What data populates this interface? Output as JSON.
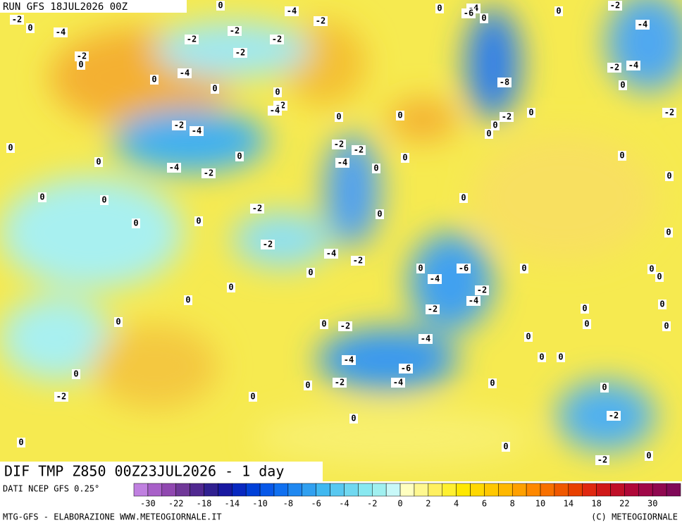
{
  "header": {
    "run": "RUN GFS 18JUL2026 00Z",
    "field": "DIF TMP Z850 00Z23JUL2026 - 1 day"
  },
  "footer": {
    "source": "DATI NCEP GFS 0.25°",
    "credit": "MTG-GFS - ELABORAZIONE WWW.METEOGIORNALE.IT",
    "copyright": "(C) METEOGIORNALE"
  },
  "colorbar": {
    "labels": [
      -30,
      -22,
      -18,
      -14,
      -10,
      -8,
      -6,
      -4,
      -2,
      0,
      2,
      4,
      6,
      8,
      10,
      14,
      18,
      22,
      30
    ],
    "colors": [
      "#c080e0",
      "#a860c8",
      "#9048b0",
      "#703898",
      "#502890",
      "#302090",
      "#1818a0",
      "#0828c0",
      "#0040d8",
      "#0858e8",
      "#1070f0",
      "#2088f0",
      "#30a0f0",
      "#40b8f0",
      "#58c8f0",
      "#70d8f0",
      "#88e8f0",
      "#a0f0f0",
      "#c8f8f8",
      "#ffffc0",
      "#fff890",
      "#fff060",
      "#fff030",
      "#ffe800",
      "#ffd800",
      "#ffc800",
      "#ffb800",
      "#ffa000",
      "#ff8800",
      "#f87000",
      "#f05800",
      "#e84000",
      "#e02810",
      "#d01818",
      "#c01028",
      "#b00838",
      "#a00848",
      "#900850",
      "#800858"
    ]
  },
  "map_labels": [
    -2,
    0,
    -4,
    -2,
    0,
    0,
    -2,
    -4,
    0,
    -2,
    -2,
    -2,
    -4,
    -2,
    0,
    -2,
    -4,
    -2,
    -4,
    0,
    0,
    -4,
    -2,
    0,
    0,
    0,
    -2,
    -2,
    -4,
    0,
    0,
    0,
    0,
    0,
    0,
    -2,
    0,
    0,
    -2,
    -4,
    -2,
    0,
    0,
    -6,
    -4,
    -2,
    -4,
    -2,
    0,
    0,
    0,
    0,
    -2,
    -4,
    -4,
    -6,
    -4,
    -2,
    0,
    0,
    0,
    -2,
    0,
    0,
    0,
    0,
    0,
    -8,
    -4,
    0,
    -6,
    -2,
    0,
    0,
    0,
    0,
    -2,
    -4,
    0,
    -4,
    -2,
    -2,
    0,
    0,
    0,
    0,
    0,
    0,
    0,
    0,
    0,
    0,
    0,
    0,
    0,
    -2,
    0,
    -2,
    0,
    0
  ]
}
